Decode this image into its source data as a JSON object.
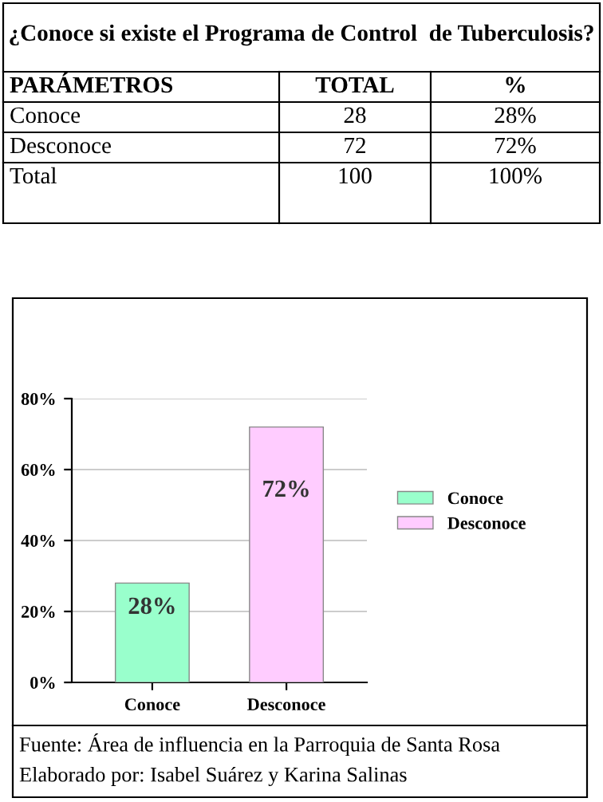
{
  "chart_data": {
    "type": "bar",
    "title": "¿Conoce si existe el Programa de Control  de Tuberculosis?",
    "categories": [
      "Conoce",
      "Desconoce"
    ],
    "series": [
      {
        "name": "Conoce",
        "color": "#99ffcc",
        "values": [
          28,
          null
        ],
        "value_labels": [
          "28%",
          null
        ]
      },
      {
        "name": "Desconoce",
        "color": "#ffccff",
        "values": [
          null,
          72
        ],
        "value_labels": [
          null,
          "72%"
        ]
      }
    ],
    "ylim": [
      0,
      80
    ],
    "yticks": [
      {
        "value": 0,
        "label": "0%"
      },
      {
        "value": 20,
        "label": "20%"
      },
      {
        "value": 40,
        "label": "40%"
      },
      {
        "value": 60,
        "label": "60%"
      },
      {
        "value": 80,
        "label": "80%"
      }
    ],
    "grid": "y",
    "legend": "right",
    "annotations": [
      "PARÁMETROS",
      "TOTAL",
      "%",
      "Conoce",
      "28",
      "28%",
      "Desconoce",
      "72",
      "72%",
      "Total",
      "100",
      "100%",
      "Fuente: Área de influencia en la Parroquia de Santa Rosa",
      "Elaborado por: Isabel Suárez y Karina Salinas"
    ]
  }
}
